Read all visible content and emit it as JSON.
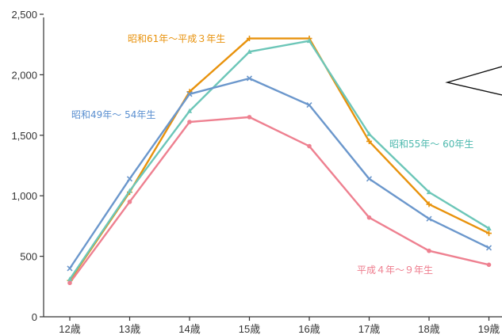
{
  "chart_data": {
    "type": "line",
    "title": "",
    "xlabel": "",
    "ylabel": "",
    "categories": [
      "12歳",
      "13歳",
      "14歳",
      "15歳",
      "16歳",
      "17歳",
      "18歳",
      "19歳"
    ],
    "ylim": [
      0,
      2500
    ],
    "yticks": [
      "0",
      "500",
      "1,000",
      "1,500",
      "2,000",
      "2,500"
    ],
    "grid": false,
    "series": [
      {
        "name": "昭和61年～平成３年生",
        "color": "#e8920c",
        "marker": "+",
        "values": [
          300,
          1030,
          1860,
          2300,
          2300,
          1450,
          930,
          690
        ]
      },
      {
        "name": "昭和55年～ 60年生",
        "color": "#6cc6b8",
        "marker": "triangle",
        "values": [
          310,
          1040,
          1700,
          2190,
          2280,
          1510,
          1030,
          730
        ]
      },
      {
        "name": "昭和49年～ 54年生",
        "color": "#6b97cc",
        "marker": "x",
        "values": [
          400,
          1140,
          1840,
          1970,
          1750,
          1140,
          810,
          570
        ]
      },
      {
        "name": "平成４年～９年生",
        "color": "#ee8090",
        "marker": "circle",
        "values": [
          280,
          950,
          1610,
          1650,
          1410,
          820,
          545,
          430
        ]
      }
    ]
  }
}
